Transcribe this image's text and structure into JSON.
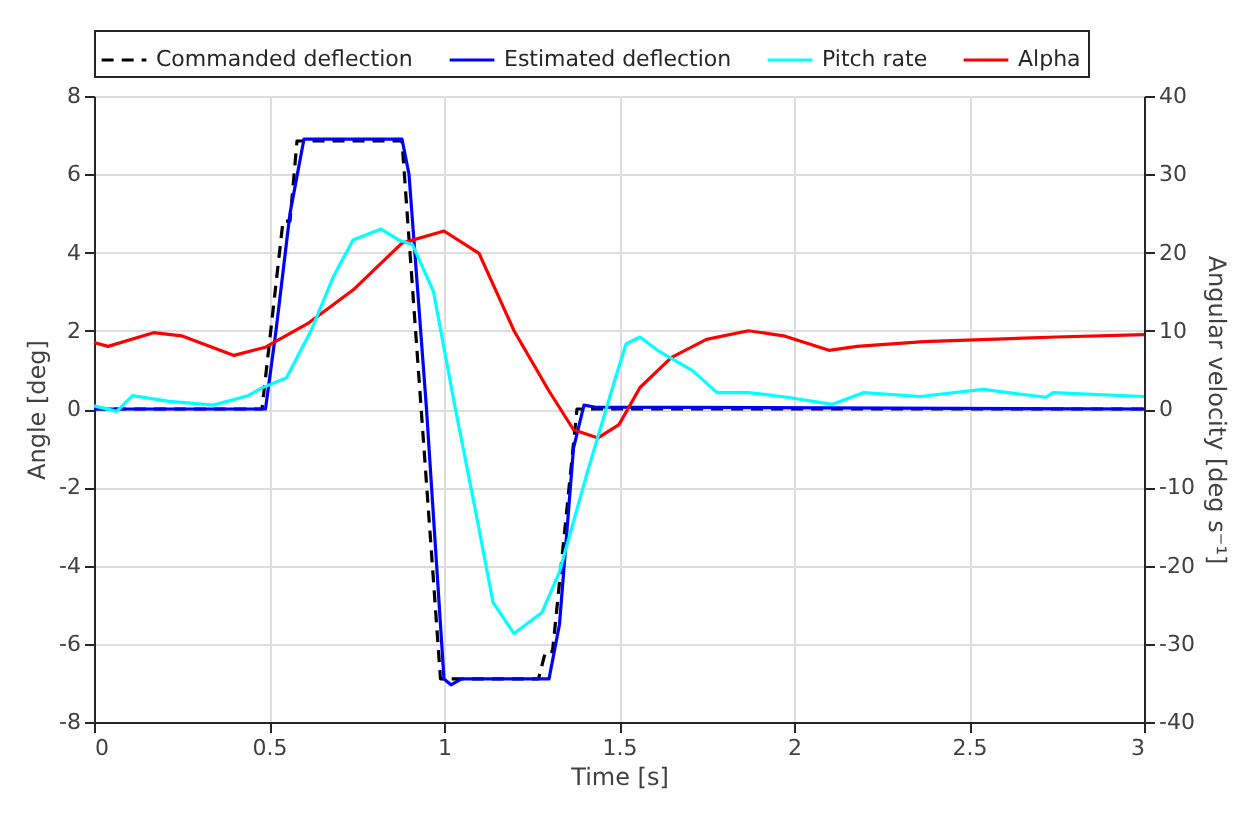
{
  "chart_data": {
    "type": "line",
    "xlabel": "Time [s]",
    "ylabel": "Angle [deg]",
    "y2label": "Angular velocity [deg s⁻¹]",
    "xlim": [
      0,
      3
    ],
    "xticks": [
      {
        "value": 0,
        "label": "0"
      },
      0.5,
      {
        "value": 1,
        "label": "1"
      },
      1.5,
      {
        "value": 2,
        "label": "2"
      },
      2.5,
      {
        "value": 3,
        "label": "3"
      }
    ],
    "ylim": [
      -8,
      8
    ],
    "yticks": [
      -8,
      -6,
      -4,
      -2,
      0,
      2,
      4,
      6,
      8
    ],
    "y2lim": [
      -40,
      40
    ],
    "y2ticks": [
      -40,
      -30,
      -20,
      -10,
      0,
      10,
      20,
      30,
      40
    ],
    "grid": true,
    "legend": "top",
    "marker": "none",
    "series": [
      {
        "name": "Commanded deflection",
        "color": "#000000",
        "line_style": "dashed",
        "x": [
          0,
          0.48,
          0.54,
          0.56,
          0.58,
          0.88,
          0.99,
          1.27,
          1.29,
          1.31,
          1.38,
          3
        ],
        "values": [
          0,
          0,
          4.8,
          4.8,
          6.85,
          6.85,
          -6.9,
          -6.9,
          -6.2,
          -6.2,
          0,
          0
        ]
      },
      {
        "name": "Estimated deflection",
        "color": "#0000ff",
        "line_style": "solid",
        "x": [
          0,
          0.49,
          0.52,
          0.56,
          0.6,
          0.62,
          0.88,
          0.9,
          0.95,
          1.0,
          1.02,
          1.05,
          1.3,
          1.33,
          1.37,
          1.4,
          1.43,
          3
        ],
        "values": [
          0,
          0,
          2,
          5,
          6.9,
          6.9,
          6.9,
          6,
          0,
          -6.9,
          -7.05,
          -6.9,
          -6.9,
          -5.5,
          -1,
          0.1,
          0.05,
          0
        ]
      },
      {
        "name": "Pitch rate",
        "color": "#00ffff",
        "line_style": "solid",
        "axis": "y2",
        "x": [
          0,
          0.065,
          0.11,
          0.21,
          0.34,
          0.44,
          0.48,
          0.55,
          0.62,
          0.685,
          0.74,
          0.82,
          0.87,
          0.91,
          0.97,
          1.03,
          1.09,
          1.14,
          1.2,
          1.28,
          1.33,
          1.41,
          1.49,
          1.52,
          1.56,
          1.61,
          1.71,
          1.78,
          1.87,
          1.98,
          2.11,
          2.2,
          2.36,
          2.54,
          2.72,
          2.74,
          3
        ],
        "values": [
          0.4,
          -0.3,
          1.7,
          1,
          0.5,
          1.7,
          2.7,
          4,
          10,
          17,
          21.6,
          23,
          21.6,
          21,
          15,
          0.6,
          -13,
          -24.7,
          -28.7,
          -26,
          -20.8,
          -8,
          4,
          8.3,
          9.2,
          7.5,
          4.9,
          2.1,
          2.1,
          1.5,
          0.6,
          2.1,
          1.6,
          2.5,
          1.5,
          2.1,
          1.6
        ]
      },
      {
        "name": "Alpha",
        "color": "#ff0000",
        "line_style": "solid",
        "x": [
          0,
          0.04,
          0.17,
          0.25,
          0.4,
          0.49,
          0.61,
          0.74,
          0.88,
          1.0,
          1.1,
          1.2,
          1.3,
          1.37,
          1.44,
          1.5,
          1.56,
          1.65,
          1.75,
          1.87,
          1.97,
          2.1,
          2.18,
          2.37,
          2.75,
          3
        ],
        "values": [
          1.7,
          1.6,
          1.95,
          1.87,
          1.37,
          1.58,
          2.18,
          3.04,
          4.24,
          4.55,
          3.98,
          2.0,
          0.46,
          -0.53,
          -0.74,
          -0.4,
          0.55,
          1.32,
          1.78,
          2.0,
          1.87,
          1.5,
          1.6,
          1.72,
          1.84,
          1.9
        ]
      }
    ]
  }
}
